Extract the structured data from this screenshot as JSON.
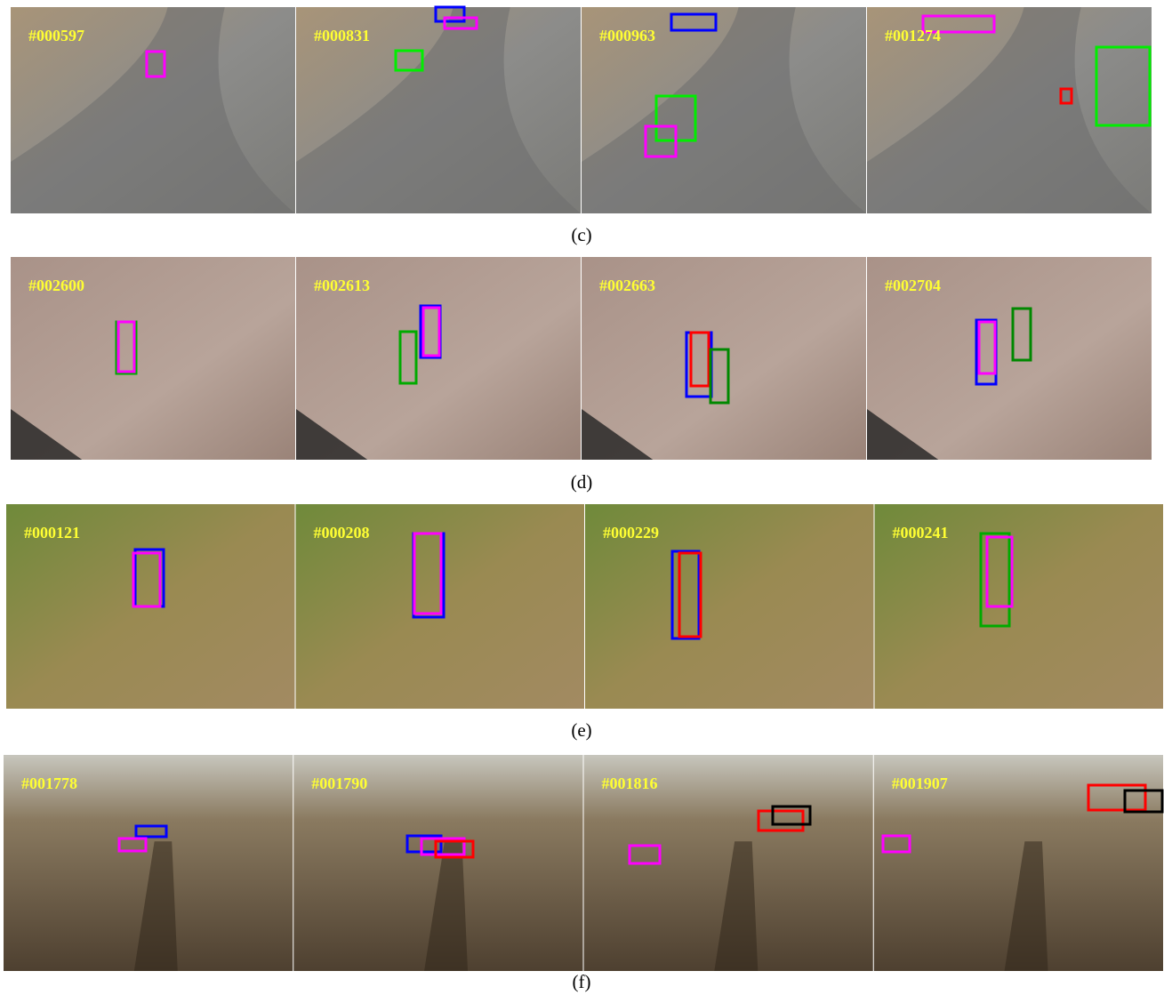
{
  "figure": {
    "rows": [
      {
        "caption": "(c)",
        "frames": [
          "#000597",
          "#000831",
          "#000963",
          "#001274"
        ]
      },
      {
        "caption": "(d)",
        "frames": [
          "#002600",
          "#002613",
          "#002663",
          "#002704"
        ]
      },
      {
        "caption": "(e)",
        "frames": [
          "#000121",
          "#000208",
          "#000229",
          "#000241"
        ]
      },
      {
        "caption": "(f)",
        "frames": [
          "#001778",
          "#001790",
          "#001816",
          "#001907"
        ]
      }
    ]
  }
}
